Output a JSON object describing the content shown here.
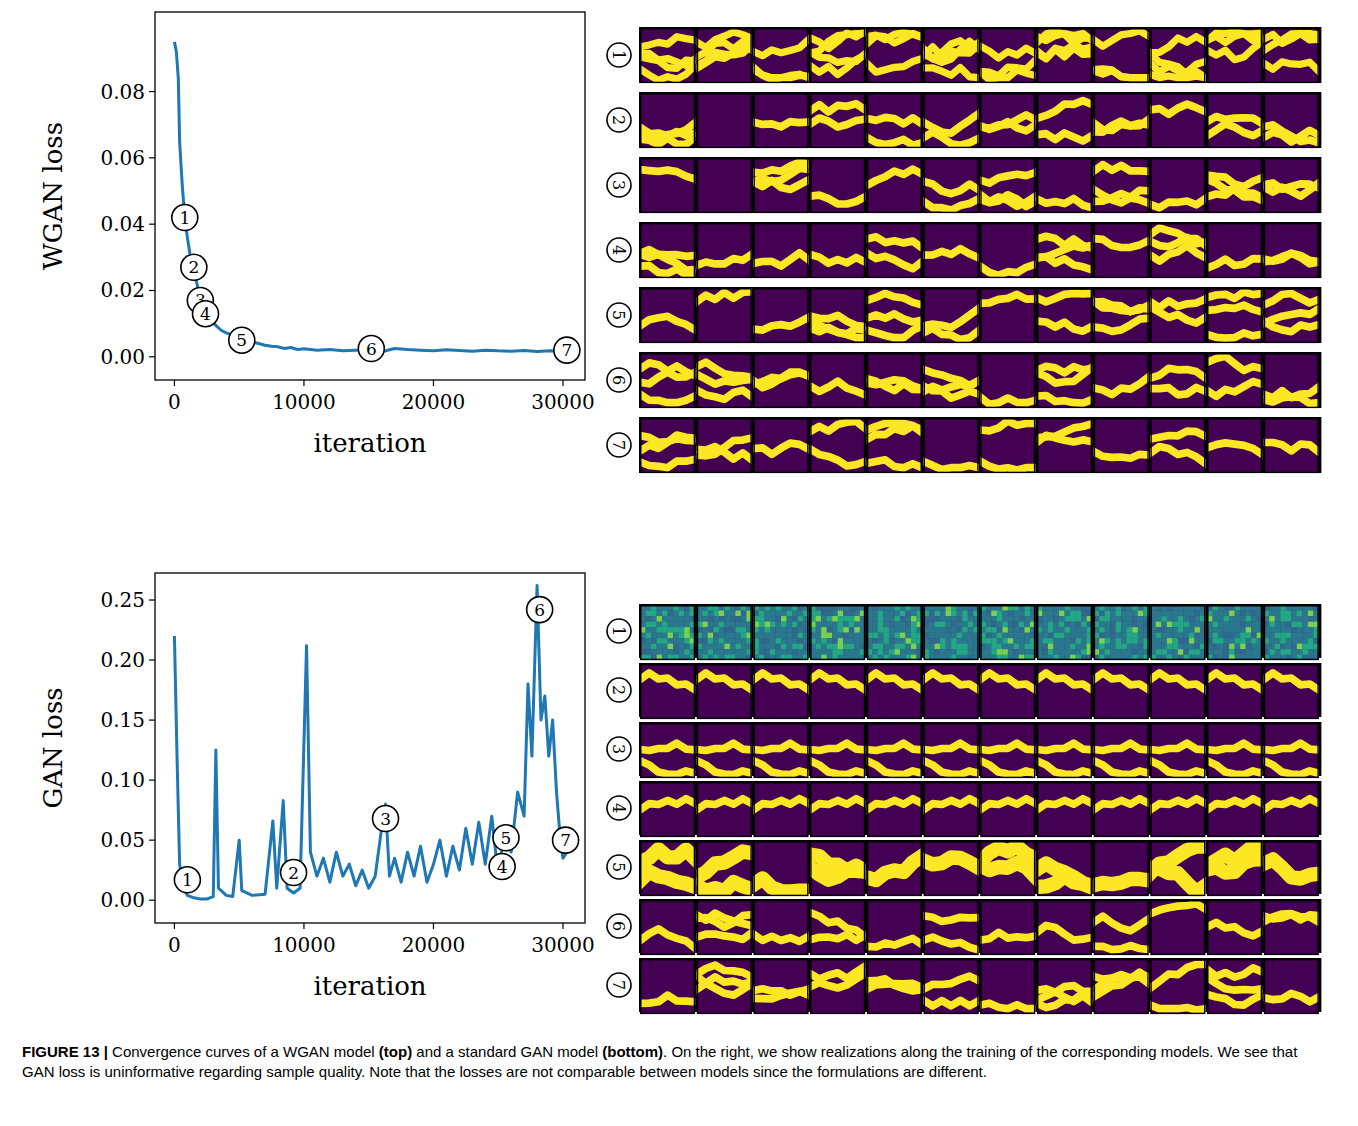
{
  "chart_data": [
    {
      "type": "line",
      "xlabel": "iteration",
      "ylabel": "WGAN loss",
      "color": "#1f77b4",
      "grid": false,
      "xlim": [
        -1500,
        31700
      ],
      "ylim": [
        -0.007,
        0.104
      ],
      "xticks": [
        0,
        10000,
        20000,
        30000
      ],
      "yticks": [
        {
          "value": 0,
          "label": "0.00"
        },
        {
          "value": 0.02,
          "label": "0.02"
        },
        {
          "value": 0.04,
          "label": "0.04"
        },
        {
          "value": 0.06,
          "label": "0.06"
        },
        {
          "value": 0.08,
          "label": "0.08"
        }
      ],
      "x": [
        0,
        150,
        300,
        400,
        600,
        800,
        1000,
        1200,
        1500,
        1800,
        2000,
        2400,
        2800,
        3200,
        3600,
        4000,
        4500,
        5000,
        5500,
        6000,
        6500,
        7000,
        7500,
        8000,
        8500,
        9000,
        9500,
        10000,
        11000,
        12000,
        13000,
        14000,
        15000,
        16000,
        17000,
        18000,
        19000,
        20000,
        21000,
        22000,
        23000,
        24000,
        25000,
        26000,
        27000,
        28000,
        29000,
        30000,
        30500
      ],
      "values": [
        0.095,
        0.092,
        0.084,
        0.065,
        0.052,
        0.042,
        0.036,
        0.031,
        0.026,
        0.021,
        0.018,
        0.014,
        0.011,
        0.0095,
        0.008,
        0.0072,
        0.0065,
        0.006,
        0.005,
        0.0045,
        0.004,
        0.0035,
        0.0032,
        0.003,
        0.0025,
        0.0028,
        0.0022,
        0.0024,
        0.002,
        0.0022,
        0.0018,
        0.002,
        0.0022,
        0.0015,
        0.0025,
        0.0022,
        0.002,
        0.0018,
        0.0021,
        0.0019,
        0.0017,
        0.002,
        0.0018,
        0.0017,
        0.0019,
        0.0016,
        0.0018,
        0.0017,
        0.0016
      ],
      "annotations": [
        {
          "label": "1",
          "x": 800,
          "y": 0.042
        },
        {
          "label": "2",
          "x": 1500,
          "y": 0.027
        },
        {
          "label": "3",
          "x": 2000,
          "y": 0.017
        },
        {
          "label": "4",
          "x": 2400,
          "y": 0.013
        },
        {
          "label": "5",
          "x": 5200,
          "y": 0.005
        },
        {
          "label": "6",
          "x": 15200,
          "y": 0.0025
        },
        {
          "label": "7",
          "x": 30300,
          "y": 0.002
        }
      ],
      "sample_rows": [
        "1",
        "2",
        "3",
        "4",
        "5",
        "6",
        "7"
      ]
    },
    {
      "type": "line",
      "xlabel": "iteration",
      "ylabel": "GAN loss",
      "color": "#1f77b4",
      "grid": false,
      "xlim": [
        -1500,
        31700
      ],
      "ylim": [
        -0.019,
        0.2725
      ],
      "xticks": [
        0,
        10000,
        20000,
        30000
      ],
      "yticks": [
        {
          "value": 0,
          "label": "0.00"
        },
        {
          "value": 0.05,
          "label": "0.05"
        },
        {
          "value": 0.1,
          "label": "0.10"
        },
        {
          "value": 0.15,
          "label": "0.15"
        },
        {
          "value": 0.2,
          "label": "0.20"
        },
        {
          "value": 0.25,
          "label": "0.25"
        }
      ],
      "x": [
        0,
        200,
        400,
        700,
        1000,
        1500,
        2000,
        2500,
        3000,
        3200,
        3400,
        4000,
        4500,
        5000,
        5200,
        6000,
        7000,
        7600,
        7900,
        8400,
        8700,
        9200,
        9700,
        10200,
        10500,
        11000,
        11500,
        12000,
        12500,
        13000,
        13500,
        14000,
        14500,
        15000,
        15500,
        16000,
        16300,
        16600,
        17000,
        17500,
        18000,
        18500,
        19000,
        19500,
        20000,
        20500,
        21000,
        21500,
        22000,
        22500,
        23000,
        23500,
        24000,
        24500,
        25000,
        25500,
        26000,
        26500,
        27000,
        27300,
        27600,
        28000,
        28300,
        28600,
        28900,
        29200,
        29500,
        29800,
        30000,
        30300
      ],
      "values": [
        0.22,
        0.12,
        0.03,
        0.01,
        0.004,
        0.002,
        0.001,
        0.001,
        0.003,
        0.125,
        0.01,
        0.004,
        0.003,
        0.05,
        0.008,
        0.004,
        0.005,
        0.066,
        0.01,
        0.083,
        0.01,
        0.006,
        0.01,
        0.212,
        0.04,
        0.02,
        0.035,
        0.015,
        0.04,
        0.02,
        0.03,
        0.012,
        0.025,
        0.01,
        0.02,
        0.06,
        0.08,
        0.02,
        0.035,
        0.015,
        0.04,
        0.02,
        0.045,
        0.015,
        0.03,
        0.05,
        0.02,
        0.045,
        0.025,
        0.06,
        0.03,
        0.065,
        0.03,
        0.07,
        0.02,
        0.06,
        0.04,
        0.09,
        0.07,
        0.18,
        0.12,
        0.262,
        0.15,
        0.17,
        0.12,
        0.15,
        0.09,
        0.05,
        0.035,
        0.04
      ],
      "annotations": [
        {
          "label": "1",
          "x": 1000,
          "y": 0.017
        },
        {
          "label": "2",
          "x": 9200,
          "y": 0.023
        },
        {
          "label": "3",
          "x": 16300,
          "y": 0.068
        },
        {
          "label": "4",
          "x": 25300,
          "y": 0.028
        },
        {
          "label": "5",
          "x": 25600,
          "y": 0.052
        },
        {
          "label": "6",
          "x": 28200,
          "y": 0.242
        },
        {
          "label": "7",
          "x": 30200,
          "y": 0.05
        }
      ],
      "sample_rows": [
        "1",
        "2",
        "3",
        "4",
        "5",
        "6",
        "7"
      ]
    }
  ],
  "caption": [
    {
      "text": "FIGURE 13 |",
      "bold": true
    },
    {
      "text": " Convergence curves of a WGAN model ",
      "bold": false
    },
    {
      "text": "(top)",
      "bold": true
    },
    {
      "text": " and a standard GAN model ",
      "bold": false
    },
    {
      "text": "(bottom)",
      "bold": true
    },
    {
      "text": ". On the right, we show realizations along the training of the corresponding models. We see that GAN loss is uninformative regarding sample quality. Note that the losses are not comparable between models since the formulations are different.",
      "bold": false
    }
  ]
}
